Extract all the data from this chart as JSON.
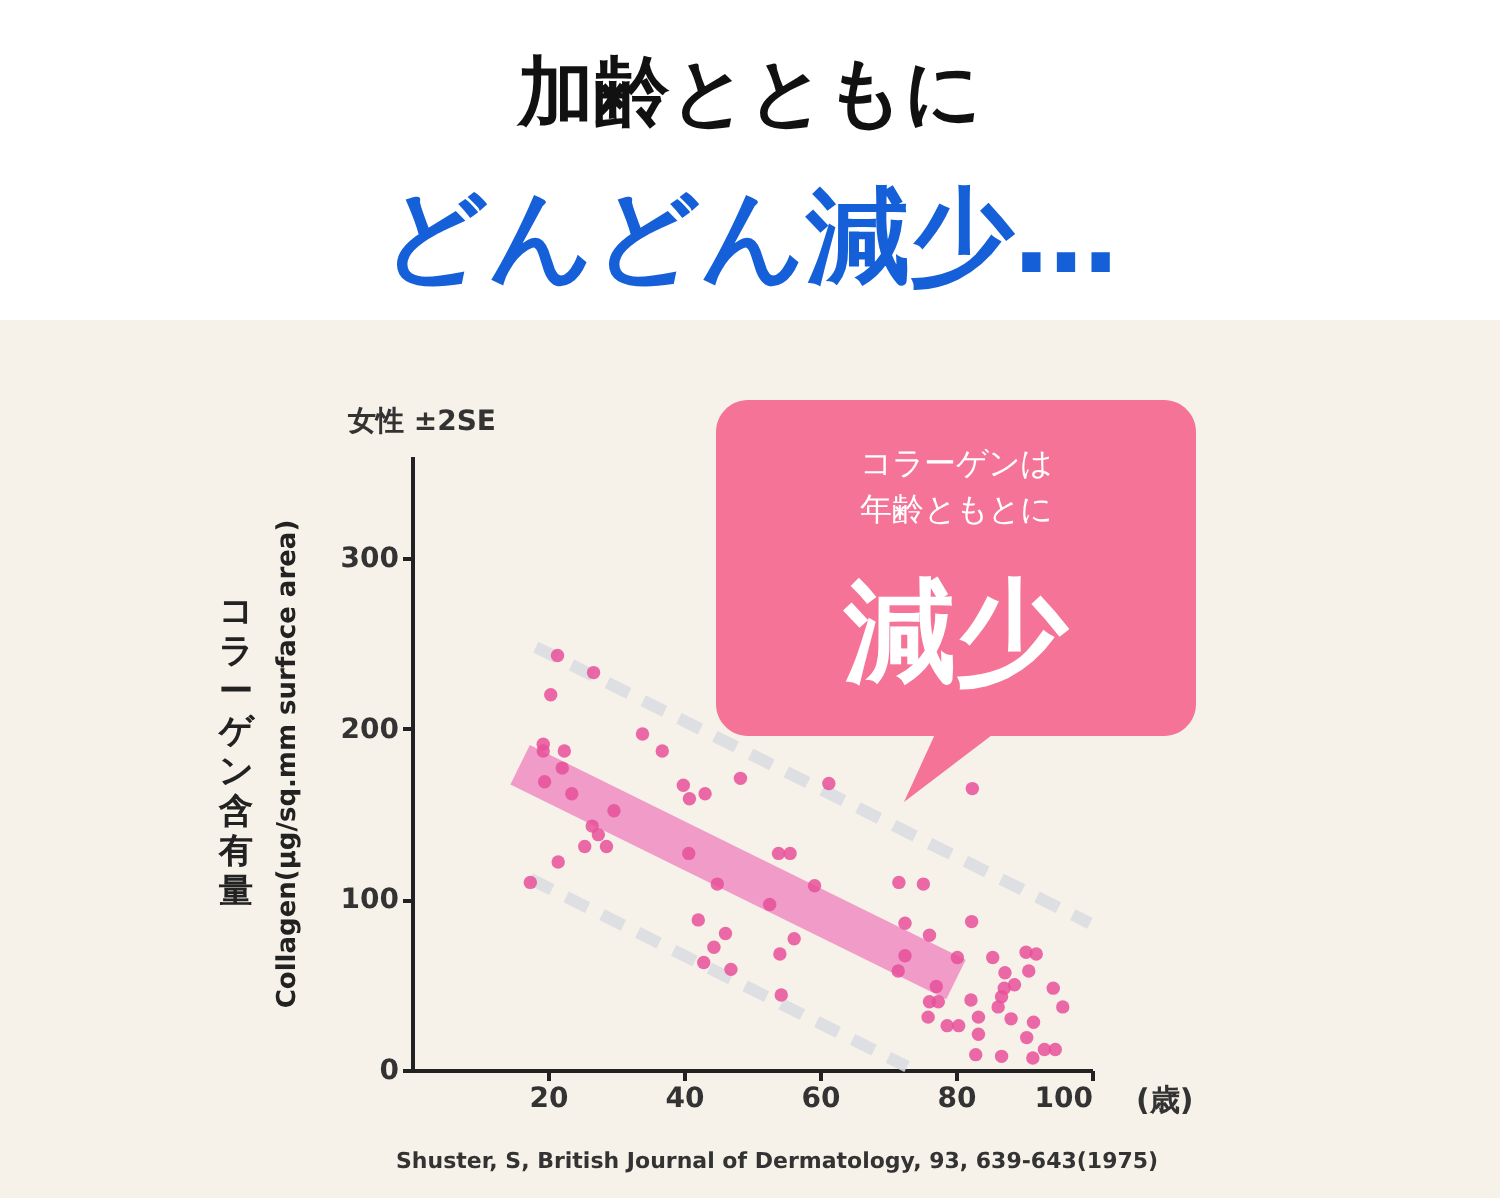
{
  "chart_data": {
    "type": "scatter",
    "title": "加齢とともに",
    "subtitle": "どんどん減少…",
    "xlabel": "(歳)",
    "ylabel": "Collagen(μg/sq.mm surface area)",
    "xlim": [
      0,
      100
    ],
    "ylim": [
      0,
      360
    ],
    "xticks": [
      20,
      40,
      60,
      80,
      100
    ],
    "yticks": [
      0,
      100,
      200,
      300
    ],
    "grid": false,
    "annotations": [
      "女性  ±2SE",
      "コラーゲンは",
      "年齢ともとに",
      "減少",
      "コラーゲン含有量",
      "Shuster, S, British Journal of Dermatology, 93, 639-643(1975)"
    ],
    "series": [
      {
        "type": "line",
        "color": "#d9dce0",
        "line_style": "dashed",
        "x": [
          18.2,
          99.7
        ],
        "values": [
          248,
          86
        ]
      },
      {
        "type": "line",
        "color": "#d9dce0",
        "line_style": "dashed",
        "x": [
          17.4,
          72.8
        ],
        "values": [
          112,
          2
        ]
      },
      {
        "type": "line",
        "color": "#ef8cc2",
        "line_style": "solid",
        "x": [
          15.9,
          80
        ],
        "values": [
          179,
          53
        ]
      },
      {
        "color": "#e8509a",
        "marker": "circle",
        "x": [
          21.4,
          26.7,
          20.4,
          19.3,
          19.3,
          22.4,
          22.1,
          19.5,
          23.5,
          29.7,
          33.9,
          36.8,
          39.9,
          40.8,
          43.1,
          48.3,
          26.5,
          27.4,
          25.4,
          28.6,
          21.5,
          17.4,
          40.7,
          44.9,
          53.9,
          55.6,
          59.2,
          52.6,
          42.1,
          46.1,
          44.4,
          42.9,
          46.9,
          56.2,
          54.1,
          54.3,
          61.3,
          82.4,
          71.6,
          75.2,
          72.5,
          76.1,
          72.5,
          71.5,
          82.3,
          80.2,
          85.4,
          90.3,
          91.8,
          87.2,
          90.7,
          88.6,
          87.1,
          94.3,
          77.1,
          76.1,
          77.4,
          82.2,
          86.7,
          86.2,
          95.7,
          75.9,
          83.3,
          88.1,
          91.4,
          78.7,
          80.4,
          83.3,
          90.4,
          86.7,
          82.9,
          91.3,
          93,
          94.6
        ],
        "values": [
          243,
          233,
          220,
          191,
          187,
          187,
          177,
          169,
          162,
          152,
          197,
          187,
          167,
          159,
          162,
          171,
          143,
          138,
          131,
          131,
          122,
          110,
          127,
          109,
          127,
          127,
          108,
          97,
          88,
          80,
          72,
          63,
          59,
          77,
          68,
          44,
          168,
          165,
          110,
          109,
          86,
          79,
          67,
          58,
          87,
          66,
          66,
          69,
          68,
          57,
          58,
          50,
          48,
          48,
          49,
          40,
          40,
          41,
          43,
          37,
          37,
          31,
          31,
          30,
          28,
          26,
          26,
          21,
          19,
          8,
          9,
          7,
          12,
          12
        ]
      }
    ]
  }
}
